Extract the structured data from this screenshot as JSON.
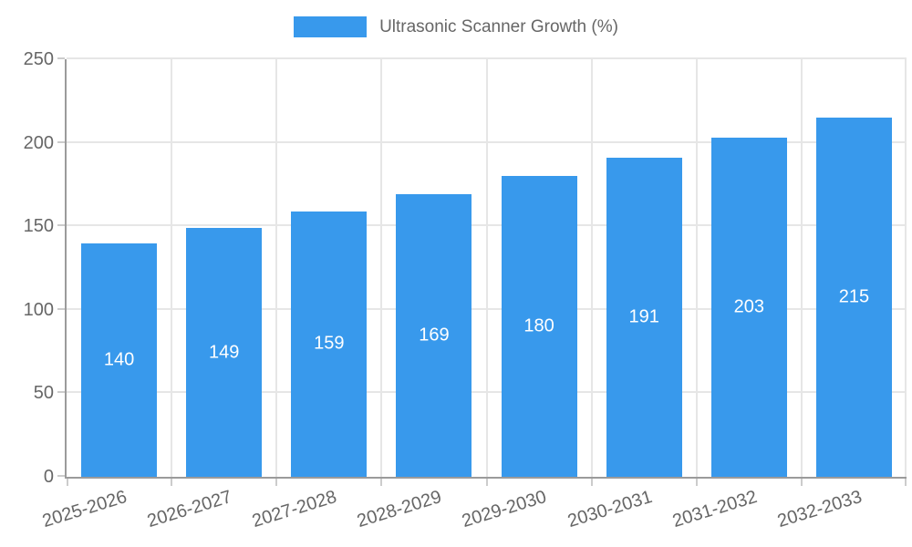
{
  "legend": {
    "label": "Ultrasonic Scanner Growth (%)"
  },
  "chart_data": {
    "type": "bar",
    "title": "Ultrasonic Scanner Growth (%)",
    "categories": [
      "2025-2026",
      "2026-2027",
      "2027-2028",
      "2028-2029",
      "2029-2030",
      "2030-2031",
      "2031-2032",
      "2032-2033"
    ],
    "values": [
      140,
      149,
      159,
      169,
      180,
      191,
      203,
      215
    ],
    "series": [
      {
        "name": "Ultrasonic Scanner Growth (%)",
        "values": [
          140,
          149,
          159,
          169,
          180,
          191,
          203,
          215
        ]
      }
    ],
    "xlabel": "",
    "ylabel": "",
    "ylim": [
      0,
      250
    ],
    "yticks": [
      0,
      50,
      100,
      150,
      200,
      250
    ],
    "grid": true,
    "legend_position": "top-center",
    "value_labels": "inside-center",
    "colors": {
      "bar": "#3899ec",
      "value_text": "#ffffff",
      "tick_text": "#666666",
      "grid": "#e6e6e6",
      "axis": "#9b9b9b",
      "tick_mark": "#cccccc",
      "background": "#ffffff"
    }
  }
}
